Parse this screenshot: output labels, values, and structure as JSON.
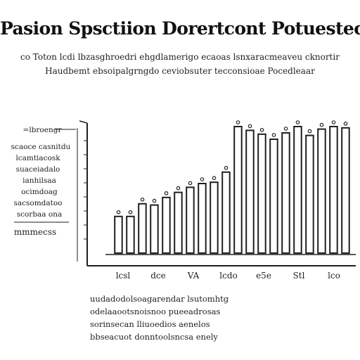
{
  "header": {
    "title": "Pasion Spsctiion Dorertcont Potuestec",
    "subtitle_lines": [
      "co  Toton  lcdi  lbzasghroedri  ehgdlamerigo  ecaoas  lsnxaracmeaveu  cknortir",
      "Haudbemt  ebsoipalgrngdo  ceviobsuter  tecconsioae  Pocedleaar"
    ]
  },
  "chart_data": {
    "type": "bar",
    "title": "",
    "xlabel": "",
    "ylabel": "",
    "ylim": [
      0,
      10
    ],
    "grid": false,
    "legend": "left",
    "categories": [
      "",
      "",
      "",
      "",
      "",
      "",
      "",
      "",
      "",
      "",
      "",
      "",
      "",
      "",
      "",
      "",
      "",
      "",
      "",
      ""
    ],
    "values": [
      2.9,
      2.9,
      3.9,
      3.8,
      4.4,
      4.8,
      5.2,
      5.5,
      5.6,
      6.4,
      10.0,
      9.7,
      9.4,
      9.0,
      9.5,
      10.0,
      9.3,
      9.8,
      10.0,
      9.9
    ],
    "x_tick_labels": [
      "lcsl",
      "dce",
      "VA",
      "lcdo",
      "e5e",
      "Stl",
      "lco"
    ],
    "legend_entries": [
      "=lbroengr",
      "scaoce  casnitdu",
      "lcamtiacosk",
      "suaceiadalo",
      "ianhilsaa",
      "ocimdoag",
      "sacsomdatoo",
      "scorbaa  ona",
      "mmmecss"
    ],
    "colors": {
      "bar_stroke": "#1f1f1f",
      "bar_fill": "#ffffff",
      "axis": "#1f1f1f"
    }
  },
  "footer": {
    "lines": [
      "uudadodolsoagarendar  lsutomhtg",
      "odelaaootsnoisnoo  pueeadrosas",
      "sorinsecan  lliuoedios  aenelos",
      "bbseacuot  donntoolsncsa  enely"
    ]
  }
}
